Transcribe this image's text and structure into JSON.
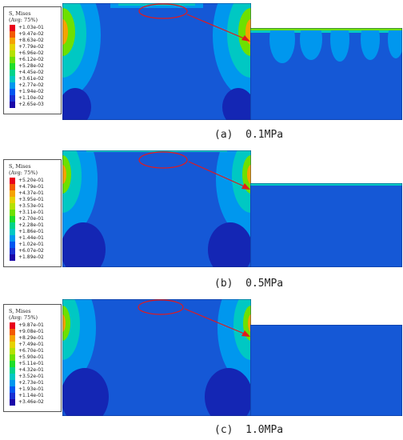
{
  "panels": [
    {
      "id": "a",
      "caption_label": "(a)",
      "caption_value": "0.1MPa",
      "legend": {
        "title_line1": "S, Mises",
        "title_line2": "(Avg: 75%)",
        "values": [
          "+1.03e-01",
          "+9.47e-02",
          "+8.63e-02",
          "+7.79e-02",
          "+6.96e-02",
          "+6.12e-02",
          "+5.28e-02",
          "+4.45e-02",
          "+3.61e-02",
          "+2.77e-02",
          "+1.94e-02",
          "+1.10e-02",
          "+2.65e-03"
        ]
      }
    },
    {
      "id": "b",
      "caption_label": "(b)",
      "caption_value": "0.5MPa",
      "legend": {
        "title_line1": "S, Mises",
        "title_line2": "(Avg: 75%)",
        "values": [
          "+5.20e-01",
          "+4.79e-01",
          "+4.37e-01",
          "+3.95e-01",
          "+3.53e-01",
          "+3.11e-01",
          "+2.70e-01",
          "+2.28e-01",
          "+1.86e-01",
          "+1.44e-01",
          "+1.02e-01",
          "+6.07e-02",
          "+1.89e-02"
        ]
      }
    },
    {
      "id": "c",
      "caption_label": "(c)",
      "caption_value": "1.0MPa",
      "legend": {
        "title_line1": "S, Mises",
        "title_line2": "(Avg: 75%)",
        "values": [
          "+9.87e-01",
          "+9.08e-01",
          "+8.29e-01",
          "+7.49e-01",
          "+6.70e-01",
          "+5.90e-01",
          "+5.11e-01",
          "+4.32e-01",
          "+3.52e-01",
          "+2.73e-01",
          "+1.93e-01",
          "+1.14e-01",
          "+3.46e-02"
        ]
      }
    }
  ],
  "colors": {
    "scale": [
      "#e8001a",
      "#f25a00",
      "#f5a300",
      "#e6d200",
      "#b4e100",
      "#6ee000",
      "#1edd2a",
      "#00d38a",
      "#00c8c3",
      "#0097ee",
      "#0056f0",
      "#1930d2",
      "#1a06a8"
    ],
    "field": "#1558d6",
    "pocket": "#1426b4",
    "annotation": "#e31a1c"
  }
}
